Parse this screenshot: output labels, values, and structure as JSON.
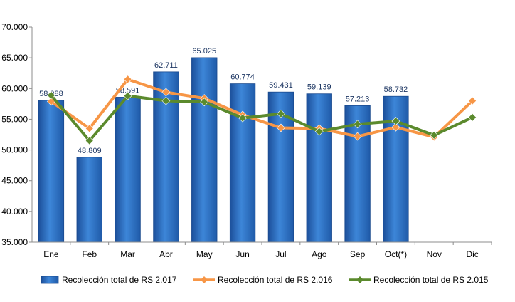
{
  "chart_data": {
    "type": "bar",
    "categories": [
      "Ene",
      "Feb",
      "Mar",
      "Abr",
      "May",
      "Jun",
      "Jul",
      "Ago",
      "Sep",
      "Oct(*)",
      "Nov",
      "Dic"
    ],
    "ylim": [
      35000,
      70000
    ],
    "yticks": [
      35000,
      40000,
      45000,
      50000,
      55000,
      60000,
      65000,
      70000
    ],
    "ytick_labels": [
      "35.000",
      "40.000",
      "45.000",
      "50.000",
      "55.000",
      "60.000",
      "65.000",
      "70.000"
    ],
    "grid": false,
    "legend_position": "bottom",
    "series": [
      {
        "name": "Recolección total de RS 2.017",
        "kind": "bar",
        "color": "#2e75c9",
        "values": [
          58088,
          48809,
          58591,
          62711,
          65025,
          60774,
          59431,
          59139,
          57213,
          58732,
          null,
          null
        ],
        "labels": [
          "58.088",
          "48.809",
          "58.591",
          "62.711",
          "65.025",
          "60.774",
          "59.431",
          "59.139",
          "57.213",
          "58.732",
          "",
          ""
        ]
      },
      {
        "name": "Recolección total de RS 2.016",
        "kind": "line",
        "color": "#f79646",
        "values": [
          57900,
          53500,
          61500,
          59400,
          58400,
          55700,
          53600,
          53500,
          52200,
          53700,
          52100,
          58000
        ]
      },
      {
        "name": "Recolección total de RS 2.015",
        "kind": "line",
        "color": "#5b8a2d",
        "values": [
          58900,
          51500,
          58800,
          58000,
          57800,
          55200,
          55900,
          53000,
          54200,
          54700,
          52400,
          55300
        ]
      }
    ]
  }
}
